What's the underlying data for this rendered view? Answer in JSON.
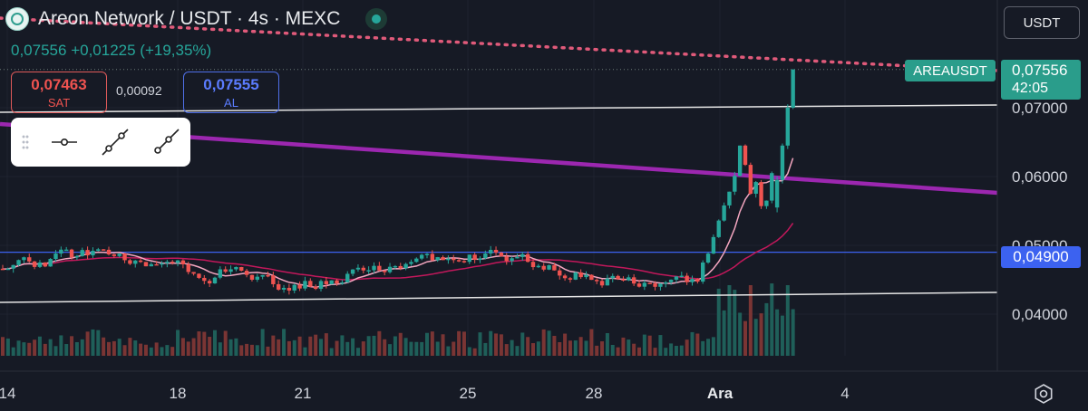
{
  "header": {
    "title": "Areon Network / USDT · 4s · MEXC",
    "last_price": "0,07556",
    "change": "+0,01225 (+19,35%)",
    "currency_button": "USDT"
  },
  "trade_panel": {
    "sell_price": "0,07463",
    "sell_label": "SAT",
    "spread": "0,00092",
    "buy_price": "0,07555",
    "buy_label": "AL"
  },
  "drawing_toolbar": {
    "tools": [
      "horizontal-line-icon",
      "trend-line-icon",
      "ray-line-icon"
    ]
  },
  "price_axis": {
    "labels": [
      "0,07000",
      "0,06000",
      "0,05000",
      "0,04000"
    ],
    "current_price_tag": "0,07556",
    "countdown": "42:05",
    "symbol_tag": "AREAUSDT",
    "line_price_tag": "0,04900"
  },
  "time_axis": {
    "labels": [
      "14",
      "18",
      "21",
      "25",
      "28",
      "Ara",
      "4"
    ]
  },
  "chart_data": {
    "type": "candlestick",
    "symbol": "AREAUSDT",
    "interval": "4s",
    "exchange": "MEXC",
    "y_range": [
      0.0365,
      0.0795
    ],
    "x_axis_dates": [
      "14",
      "18",
      "21",
      "25",
      "28",
      "Ara",
      "4"
    ],
    "y_ticks": [
      0.07,
      0.06,
      0.05,
      0.04
    ],
    "horizontal_levels": [
      0.049
    ],
    "last_price": 0.07556,
    "colors": {
      "up": "#26a69a",
      "down": "#ef5350",
      "ma_fast": "#f4a6c0",
      "ma_slow": "#c2185b",
      "purple_trend": "#9c27b0",
      "level_line": "#3c62f0",
      "background": "#161a25"
    }
  }
}
